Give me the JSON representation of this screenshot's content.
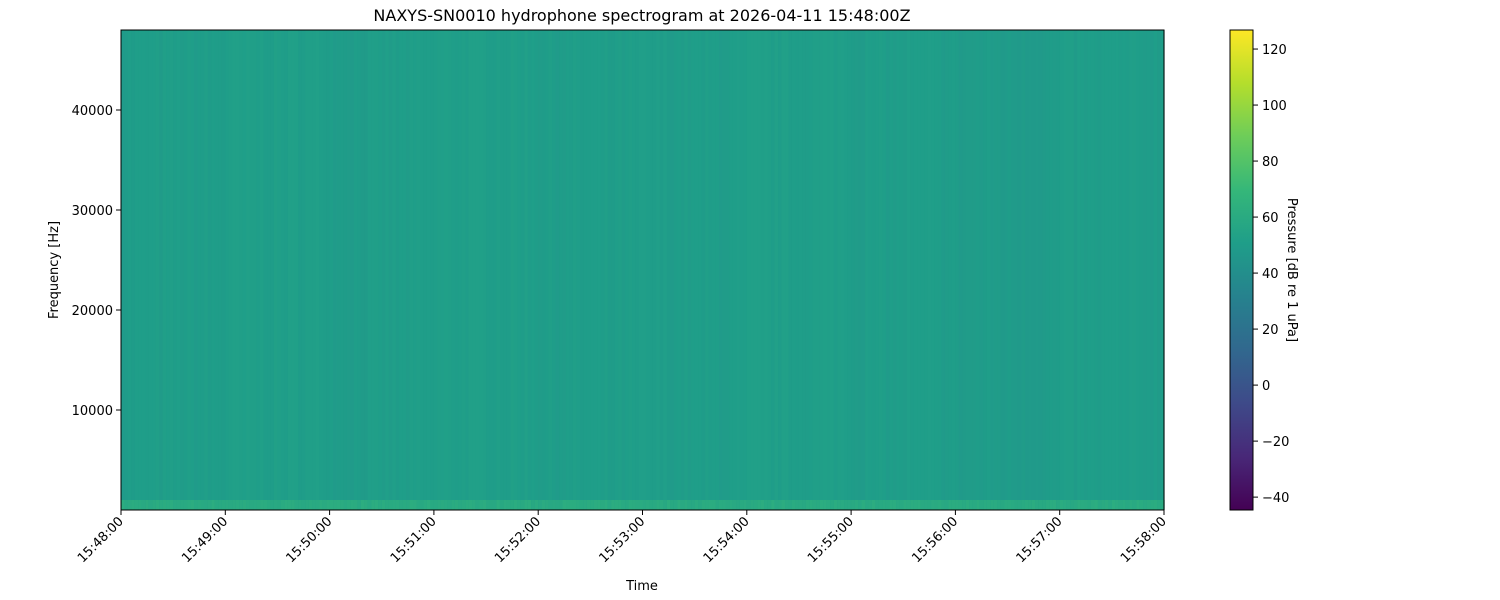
{
  "chart_data": {
    "type": "heatmap",
    "title": "NAXYS-SN0010 hydrophone spectrogram at 2026-04-11 15:48:00Z",
    "xlabel": "Time",
    "ylabel": "Frequency [Hz]",
    "x_ticks": [
      "15:48:00",
      "15:49:00",
      "15:50:00",
      "15:51:00",
      "15:52:00",
      "15:53:00",
      "15:54:00",
      "15:55:00",
      "15:56:00",
      "15:57:00",
      "15:58:00"
    ],
    "xlim": [
      "15:48:00",
      "15:58:00"
    ],
    "y_ticks": [
      10000,
      20000,
      30000,
      40000
    ],
    "ylim": [
      0,
      48000
    ],
    "colormap": "viridis",
    "colorbar": {
      "label": "Pressure [dB re 1 uPa]",
      "range": [
        -44.6,
        126.8
      ],
      "ticks": [
        -40,
        -20,
        0,
        20,
        40,
        60,
        80,
        100,
        120
      ]
    },
    "approx_levels_db_by_minute": [
      50,
      51,
      50,
      51,
      50,
      50,
      51,
      50,
      49,
      50
    ],
    "approx_low_frequency_band": {
      "below_hz": 1000,
      "level_db": 60
    },
    "grid": false
  }
}
